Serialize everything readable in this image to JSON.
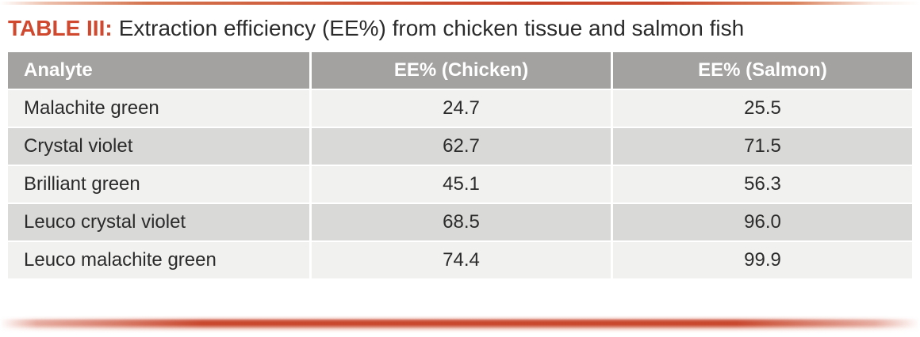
{
  "title": {
    "label": "TABLE III:",
    "text": "Extraction efficiency (EE%) from chicken tissue and salmon fish"
  },
  "colors": {
    "accent_red": "#d0492e",
    "rule_red_dark": "#c64227",
    "header_bg": "#a3a2a0",
    "header_text": "#ffffff",
    "row_light": "#f1f1ef",
    "row_dark": "#d9d9d7",
    "body_text": "#2b2b2b"
  },
  "table": {
    "columns": [
      "Analyte",
      "EE% (Chicken)",
      "EE% (Salmon)"
    ],
    "rows": [
      {
        "analyte": "Malachite green",
        "chicken": "24.7",
        "salmon": "25.5"
      },
      {
        "analyte": "Crystal violet",
        "chicken": "62.7",
        "salmon": "71.5"
      },
      {
        "analyte": "Brilliant green",
        "chicken": "45.1",
        "salmon": "56.3"
      },
      {
        "analyte": "Leuco crystal violet",
        "chicken": "68.5",
        "salmon": "96.0"
      },
      {
        "analyte": "Leuco malachite green",
        "chicken": "74.4",
        "salmon": "99.9"
      }
    ]
  }
}
